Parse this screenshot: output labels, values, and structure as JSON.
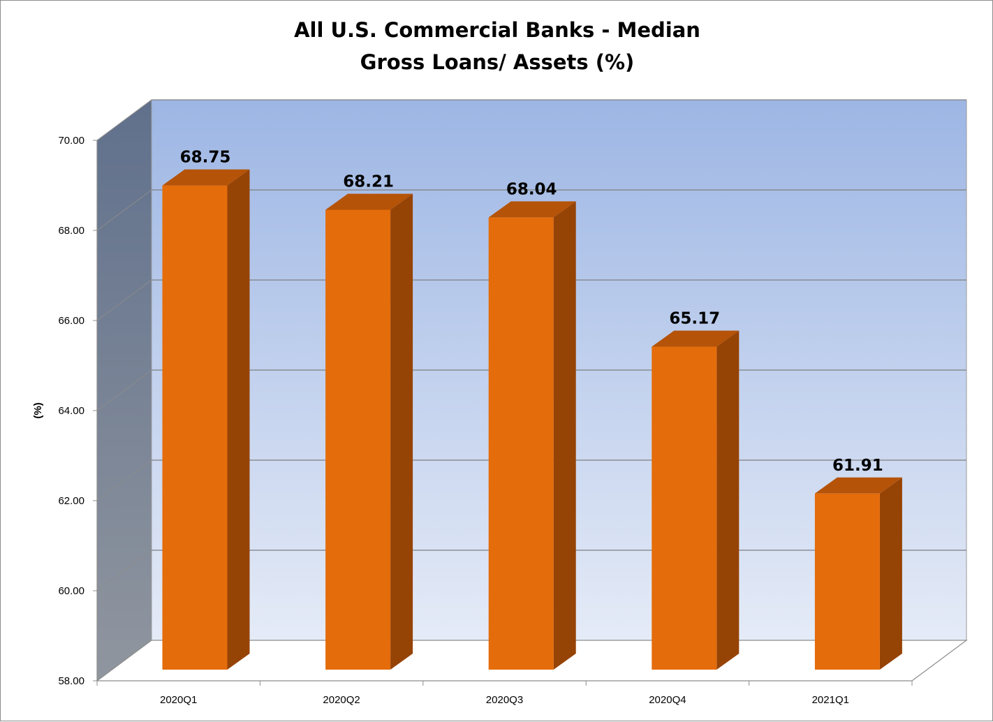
{
  "chart_data": {
    "type": "bar",
    "title": [
      "All U.S. Commercial Banks - Median",
      "Gross Loans/ Assets (%)"
    ],
    "xlabel": "",
    "ylabel": "(%)",
    "categories": [
      "2020Q1",
      "2020Q2",
      "2020Q3",
      "2020Q4",
      "2021Q1"
    ],
    "values": [
      68.75,
      68.21,
      68.04,
      65.17,
      61.91
    ],
    "data_labels": [
      "68.75",
      "68.21",
      "68.04",
      "65.17",
      "61.91"
    ],
    "ylim": [
      58,
      70
    ],
    "yticks": [
      "58.00",
      "60.00",
      "62.00",
      "64.00",
      "66.00",
      "68.00",
      "70.00"
    ],
    "grid": true,
    "legend": "none",
    "colors": {
      "bar_front": "#e46c0a",
      "bar_side": "#964306",
      "bar_top": "#b55308",
      "wall_top": "#9db6e4",
      "wall_bottom": "#e5ebf7",
      "side_wall_top": "#60708c",
      "side_wall_bottom": "#90969f"
    }
  }
}
